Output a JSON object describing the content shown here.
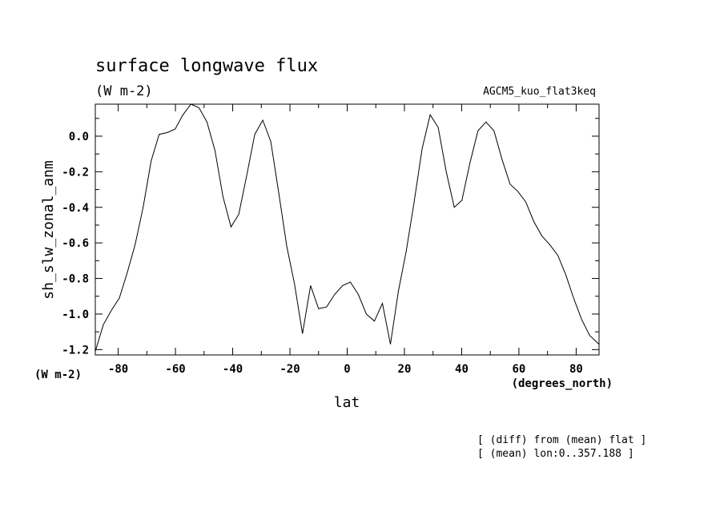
{
  "chart_data": {
    "type": "line",
    "title": "surface longwave flux",
    "units": "(W m-2)",
    "dataset": "AGCM5_kuo_flat3keq",
    "ylabel": "sh_slw_zonal_anm",
    "ylabel_units": "(W m-2)",
    "xlabel": "lat",
    "xlabel_units": "(degrees_north)",
    "note_lines": [
      "[ (diff) from (mean) flat ]",
      "[ (mean) lon:0..357.188 ]"
    ],
    "xlim": [
      -88,
      88
    ],
    "ylim": [
      -1.23,
      0.18
    ],
    "xticks": [
      -80,
      -60,
      -40,
      -20,
      0,
      20,
      40,
      60,
      80
    ],
    "xtick_labels": [
      "-80",
      "-60",
      "-40",
      "-20",
      "0",
      "20",
      "40",
      "60",
      "80"
    ],
    "yticks": [
      0.0,
      -0.2,
      -0.4,
      -0.6,
      -0.8,
      -1.0,
      -1.2
    ],
    "ytick_labels": [
      "0.0",
      "-0.2",
      "-0.4",
      "-0.6",
      "-0.8",
      "-1.0",
      "-1.2"
    ],
    "grid": false,
    "series": [
      {
        "x": [
          -88.0,
          -85.2,
          -82.4,
          -79.6,
          -76.9,
          -74.1,
          -71.3,
          -68.5,
          -65.7,
          -62.9,
          -60.1,
          -57.4,
          -54.6,
          -51.8,
          -49.0,
          -46.2,
          -43.4,
          -40.6,
          -37.9,
          -35.1,
          -32.3,
          -29.5,
          -26.7,
          -23.9,
          -21.1,
          -18.4,
          -15.6,
          -12.8,
          -10.0,
          -7.2,
          -4.4,
          -1.6,
          1.1,
          3.9,
          6.7,
          9.5,
          12.3,
          15.1,
          17.9,
          20.6,
          23.4,
          26.2,
          29.0,
          31.8,
          34.6,
          37.4,
          40.1,
          42.9,
          45.7,
          48.5,
          51.3,
          54.1,
          56.9,
          59.6,
          62.4,
          65.2,
          68.0,
          70.8,
          73.6,
          76.4,
          79.1,
          81.9,
          84.7,
          88.0
        ],
        "y": [
          -1.21,
          -1.06,
          -0.98,
          -0.91,
          -0.77,
          -0.61,
          -0.4,
          -0.14,
          0.01,
          0.02,
          0.04,
          0.12,
          0.18,
          0.16,
          0.08,
          -0.08,
          -0.34,
          -0.51,
          -0.44,
          -0.22,
          0.01,
          0.09,
          -0.03,
          -0.32,
          -0.62,
          -0.83,
          -1.11,
          -0.84,
          -0.97,
          -0.96,
          -0.89,
          -0.84,
          -0.82,
          -0.89,
          -1.0,
          -1.04,
          -0.94,
          -1.17,
          -0.87,
          -0.65,
          -0.37,
          -0.07,
          0.12,
          0.05,
          -0.2,
          -0.4,
          -0.36,
          -0.15,
          0.03,
          0.08,
          0.03,
          -0.13,
          -0.27,
          -0.31,
          -0.37,
          -0.48,
          -0.56,
          -0.61,
          -0.67,
          -0.78,
          -0.91,
          -1.03,
          -1.12,
          -1.17
        ]
      }
    ]
  }
}
